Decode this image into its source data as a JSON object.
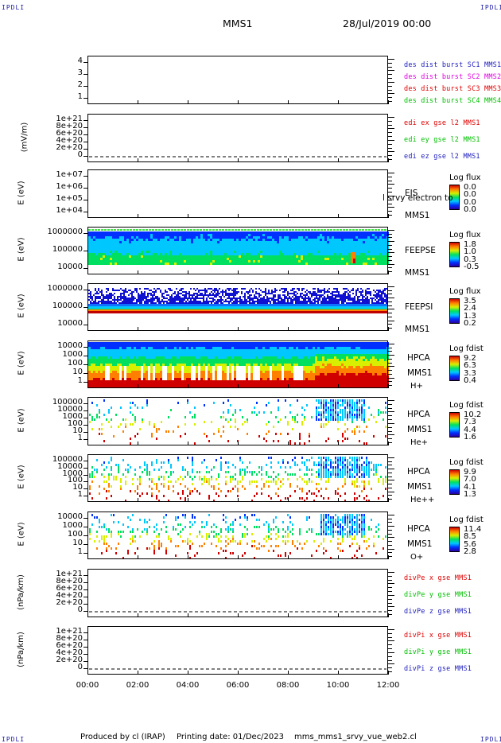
{
  "header": {
    "corner_label": "IPDLI",
    "spacecraft": "MMS1",
    "datetime": "28/Jul/2019 00:00"
  },
  "footer": {
    "produced_by": "Produced by cl (IRAP)",
    "printing_date": "Printing date: 01/Dec/2023",
    "script": "mms_mms1_srvy_vue_web2.cl"
  },
  "colors": {
    "blue": "#1c1cbe",
    "magenta": "#e000e0",
    "red": "#e00000",
    "green": "#00c000"
  },
  "chart_data": {
    "type": "heatmap",
    "x_tick_labels": [
      "00:00",
      "02:00",
      "04:00",
      "06:00",
      "08:00",
      "10:00",
      "12:00"
    ],
    "xlim": [
      "00:00",
      "12:00"
    ],
    "panels": [
      {
        "name": "des-dist-burst",
        "ylabel": "",
        "y_ticks": [
          "4",
          "3",
          "2",
          "1"
        ],
        "right_labels": [
          {
            "text": "des dist burst SC1 MMS1",
            "color": "#1c1cbe"
          },
          {
            "text": "des dist burst SC2 MMS2",
            "color": "#e000e0"
          },
          {
            "text": "des dist burst SC3 MMS3",
            "color": "#e00000"
          },
          {
            "text": "des dist burst SC4 MMS4",
            "color": "#00c000"
          }
        ]
      },
      {
        "name": "edi-e-field",
        "ylabel": "(mV/m)",
        "y_ticks": [
          "1e+21",
          "8e+20",
          "6e+20",
          "4e+20",
          "2e+20",
          "0"
        ],
        "right_labels": [
          {
            "text": "edi ex gse l2 MMS1",
            "color": "#e00000"
          },
          {
            "text": "edi ey gse l2 MMS1",
            "color": "#00c000"
          },
          {
            "text": "edi ez gse l2 MMS1",
            "color": "#1c1cbe"
          }
        ]
      },
      {
        "name": "eis",
        "ylabel": "E (eV)",
        "y_ticks": [
          "1e+07",
          "1e+06",
          "1e+05",
          "1e+04"
        ],
        "species": [
          "EIS",
          "MMS1"
        ],
        "overlay_text": "l srvy electron to",
        "cbar_title": "Log flux",
        "cbar_values": [
          "0.0",
          "0.0",
          "0.0",
          "0.0"
        ]
      },
      {
        "name": "feeps-electron",
        "ylabel": "E (eV)",
        "y_ticks": [
          "1000000",
          "100000",
          "10000"
        ],
        "species": [
          "FEEPSE",
          "MMS1"
        ],
        "cbar_title": "Log flux",
        "cbar_values": [
          "1.8",
          "1.0",
          "0.3",
          "-0.5"
        ]
      },
      {
        "name": "feeps-ion",
        "ylabel": "E (eV)",
        "y_ticks": [
          "1000000",
          "100000",
          "10000"
        ],
        "species": [
          "FEEPSI",
          "MMS1"
        ],
        "cbar_title": "Log flux",
        "cbar_values": [
          "3.5",
          "2.4",
          "1.3",
          "0.2"
        ]
      },
      {
        "name": "hpca-h",
        "ylabel": "E (eV)",
        "y_ticks": [
          "10000",
          "1000",
          "100",
          "10",
          "1"
        ],
        "species": [
          "HPCA",
          "MMS1",
          "H+"
        ],
        "cbar_title": "Log fdist",
        "cbar_values": [
          "9.2",
          "6.3",
          "3.3",
          "0.4"
        ]
      },
      {
        "name": "hpca-he",
        "ylabel": "E (eV)",
        "y_ticks": [
          "100000",
          "10000",
          "1000",
          "100",
          "10",
          "1"
        ],
        "species": [
          "HPCA",
          "MMS1",
          "He+"
        ],
        "cbar_title": "Log fdist",
        "cbar_values": [
          "10.2",
          "7.3",
          "4.4",
          "1.6"
        ]
      },
      {
        "name": "hpca-hepp",
        "ylabel": "E (eV)",
        "y_ticks": [
          "100000",
          "10000",
          "1000",
          "100",
          "10",
          "1"
        ],
        "species": [
          "HPCA",
          "MMS1",
          "He++"
        ],
        "cbar_title": "Log fdist",
        "cbar_values": [
          "9.9",
          "7.0",
          "4.1",
          "1.3"
        ]
      },
      {
        "name": "hpca-o",
        "ylabel": "E (eV)",
        "y_ticks": [
          "10000",
          "1000",
          "100",
          "10",
          "1"
        ],
        "species": [
          "HPCA",
          "MMS1",
          "O+"
        ],
        "cbar_title": "Log fdist",
        "cbar_values": [
          "11.4",
          "8.5",
          "5.6",
          "2.8"
        ]
      },
      {
        "name": "div-pe",
        "ylabel": "(nPa/km)",
        "y_ticks": [
          "1e+21",
          "8e+20",
          "6e+20",
          "4e+20",
          "2e+20",
          "0"
        ],
        "right_labels": [
          {
            "text": "divPe x gse MMS1",
            "color": "#e00000"
          },
          {
            "text": "divPe y gse MMS1",
            "color": "#00c000"
          },
          {
            "text": "divPe z gse MMS1",
            "color": "#1c1cbe"
          }
        ]
      },
      {
        "name": "div-pi",
        "ylabel": "(nPa/km)",
        "y_ticks": [
          "1e+21",
          "8e+20",
          "6e+20",
          "4e+20",
          "2e+20",
          "0"
        ],
        "right_labels": [
          {
            "text": "divPi x gse MMS1",
            "color": "#e00000"
          },
          {
            "text": "divPi y gse MMS1",
            "color": "#00c000"
          },
          {
            "text": "divPi z gse MMS1",
            "color": "#1c1cbe"
          }
        ]
      }
    ]
  }
}
